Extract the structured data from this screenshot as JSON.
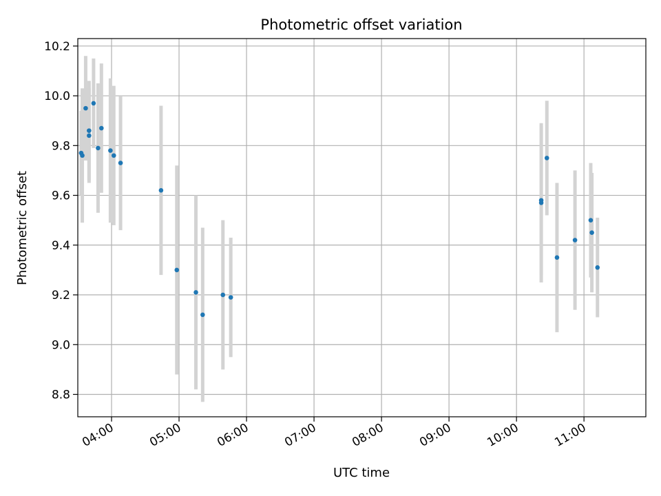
{
  "chart_data": {
    "type": "scatter",
    "title": "Photometric offset variation",
    "xlabel": "UTC time",
    "ylabel": "Photometric offset",
    "x_ticks": [
      "04:00",
      "05:00",
      "06:00",
      "07:00",
      "08:00",
      "09:00",
      "10:00",
      "11:00"
    ],
    "y_ticks": [
      "8.8",
      "9.0",
      "9.2",
      "9.4",
      "9.6",
      "9.8",
      "10.0",
      "10.2"
    ],
    "xlim": [
      "03:30",
      "11:55"
    ],
    "ylim": [
      8.71,
      10.23
    ],
    "grid": true,
    "legend": "none",
    "point_color": "#1f77b4",
    "errorbar_color": "#d3d3d3",
    "points": [
      {
        "x": "03:33",
        "y": 9.77,
        "err": 0.17
      },
      {
        "x": "03:34",
        "y": 9.76,
        "err": 0.27
      },
      {
        "x": "03:37",
        "y": 9.95,
        "err": 0.21
      },
      {
        "x": "03:40",
        "y": 9.84,
        "err": 0.19
      },
      {
        "x": "03:40",
        "y": 9.86,
        "err": 0.2
      },
      {
        "x": "03:44",
        "y": 9.97,
        "err": 0.18
      },
      {
        "x": "03:48",
        "y": 9.79,
        "err": 0.26
      },
      {
        "x": "03:51",
        "y": 9.87,
        "err": 0.26
      },
      {
        "x": "03:59",
        "y": 9.78,
        "err": 0.29
      },
      {
        "x": "04:02",
        "y": 9.76,
        "err": 0.28
      },
      {
        "x": "04:08",
        "y": 9.73,
        "err": 0.27
      },
      {
        "x": "04:44",
        "y": 9.62,
        "err": 0.34
      },
      {
        "x": "04:58",
        "y": 9.3,
        "err": 0.42
      },
      {
        "x": "05:15",
        "y": 9.21,
        "err": 0.39
      },
      {
        "x": "05:21",
        "y": 9.12,
        "err": 0.35
      },
      {
        "x": "05:39",
        "y": 9.2,
        "err": 0.3
      },
      {
        "x": "05:46",
        "y": 9.19,
        "err": 0.24
      },
      {
        "x": "10:22",
        "y": 9.57,
        "err": 0.32
      },
      {
        "x": "10:22",
        "y": 9.58,
        "err": 0.3
      },
      {
        "x": "10:27",
        "y": 9.75,
        "err": 0.23
      },
      {
        "x": "10:36",
        "y": 9.35,
        "err": 0.3
      },
      {
        "x": "10:52",
        "y": 9.42,
        "err": 0.28
      },
      {
        "x": "11:06",
        "y": 9.5,
        "err": 0.23
      },
      {
        "x": "11:07",
        "y": 9.45,
        "err": 0.24
      },
      {
        "x": "11:12",
        "y": 9.31,
        "err": 0.2
      }
    ]
  }
}
